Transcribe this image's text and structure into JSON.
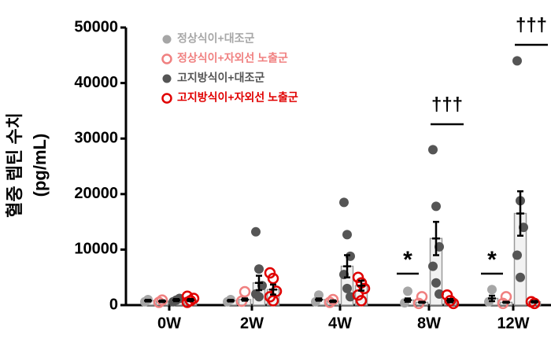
{
  "chart_data": {
    "type": "bar",
    "ylabel": "혈중 렙틴 수치",
    "ylabel_unit": "(pg/mL)",
    "categories": [
      "0W",
      "2W",
      "4W",
      "8W",
      "12W"
    ],
    "ylim": [
      0,
      50000
    ],
    "yticks": [
      0,
      10000,
      20000,
      30000,
      40000,
      50000
    ],
    "series": [
      {
        "name": "정상식이+대조군",
        "color": "#a6a6a6",
        "marker": "filled",
        "values": [
          800,
          800,
          1000,
          900,
          1200
        ],
        "errors": [
          150,
          150,
          200,
          300,
          500
        ],
        "points": [
          [
            600,
            1000
          ],
          [
            600,
            1000
          ],
          [
            600,
            1800
          ],
          [
            400,
            2500
          ],
          [
            600,
            2800
          ]
        ]
      },
      {
        "name": "정상식이+자외선 노출군",
        "color": "#f08080",
        "marker": "open",
        "values": [
          700,
          1000,
          700,
          500,
          500
        ],
        "errors": [
          150,
          200,
          150,
          100,
          100
        ],
        "points": [
          [
            500,
            900
          ],
          [
            700,
            2400
          ],
          [
            500,
            1000
          ],
          [
            300,
            1500
          ],
          [
            300,
            1500
          ]
        ]
      },
      {
        "name": "고지방식이+대조군",
        "color": "#555555",
        "marker": "filled",
        "values": [
          900,
          4000,
          7000,
          12000,
          16500
        ],
        "errors": [
          200,
          1300,
          2000,
          3000,
          4000
        ],
        "points": [
          [
            600,
            900,
            1200
          ],
          [
            13200,
            6500,
            3500,
            2000,
            1500
          ],
          [
            18500,
            12700,
            8800,
            5500,
            3000,
            1500
          ],
          [
            28000,
            17800,
            10500,
            7000,
            4000,
            2000
          ],
          [
            44000,
            18800,
            14000,
            9000,
            5000
          ]
        ]
      },
      {
        "name": "고지방식이+자외선 노출군",
        "color": "#e00000",
        "marker": "open",
        "values": [
          900,
          2800,
          3500,
          800,
          600
        ],
        "errors": [
          200,
          900,
          900,
          300,
          150
        ],
        "points": [
          [
            500,
            800,
            1200,
            1600
          ],
          [
            5800,
            4800,
            2500,
            1500,
            800
          ],
          [
            5000,
            4000,
            3000,
            1800,
            800
          ],
          [
            1800,
            800,
            300
          ],
          [
            600,
            300
          ]
        ]
      }
    ],
    "annotations": [
      {
        "text": "*",
        "category": "8W"
      },
      {
        "text": "*",
        "category": "12W"
      },
      {
        "text": "†††",
        "category": "8W"
      },
      {
        "text": "†††",
        "category": "12W"
      }
    ]
  }
}
